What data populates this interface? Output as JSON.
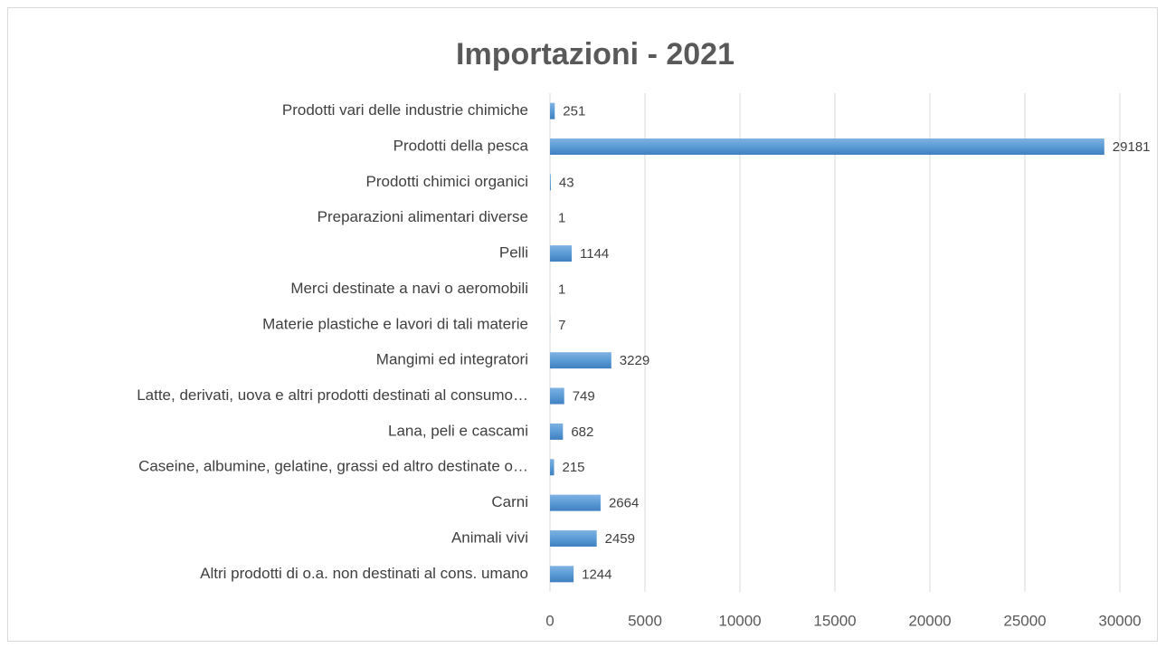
{
  "chart_data": {
    "type": "bar",
    "orientation": "horizontal",
    "title": "Importazioni  - 2021",
    "categories": [
      "Prodotti vari delle industrie chimiche",
      "Prodotti della pesca",
      "Prodotti chimici organici",
      "Preparazioni alimentari diverse",
      "Pelli",
      "Merci destinate a navi o aeromobili",
      "Materie plastiche e lavori di tali materie",
      "Mangimi ed integratori",
      "Latte, derivati, uova e altri prodotti destinati al consumo…",
      "Lana, peli e cascami",
      "Caseine, albumine, gelatine, grassi ed altro destinate o…",
      "Carni",
      "Animali vivi",
      "Altri prodotti di o.a. non destinati al cons. umano"
    ],
    "values": [
      251,
      29181,
      43,
      1,
      1144,
      1,
      7,
      3229,
      749,
      682,
      215,
      2664,
      2459,
      1244
    ],
    "color": "#5b9bd5",
    "xlim": [
      0,
      30000
    ],
    "xticks": [
      0,
      5000,
      10000,
      15000,
      20000,
      25000,
      30000
    ],
    "grid": true
  }
}
